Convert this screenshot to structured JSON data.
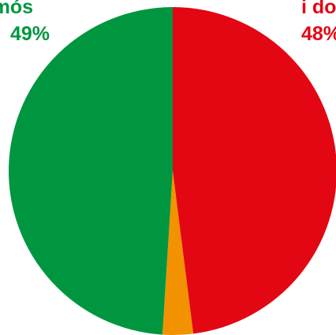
{
  "chart_data": {
    "type": "pie",
    "categories": [
      "Sí, demanamós",
      "Sí, quedi dom",
      ""
    ],
    "values": [
      49,
      48,
      3
    ],
    "labels": [
      {
        "name": "amós",
        "pct": "49%"
      },
      {
        "name": "i do",
        "pct": "48%"
      }
    ],
    "colors": [
      "#009640",
      "#e30613",
      "#f39200"
    ]
  }
}
